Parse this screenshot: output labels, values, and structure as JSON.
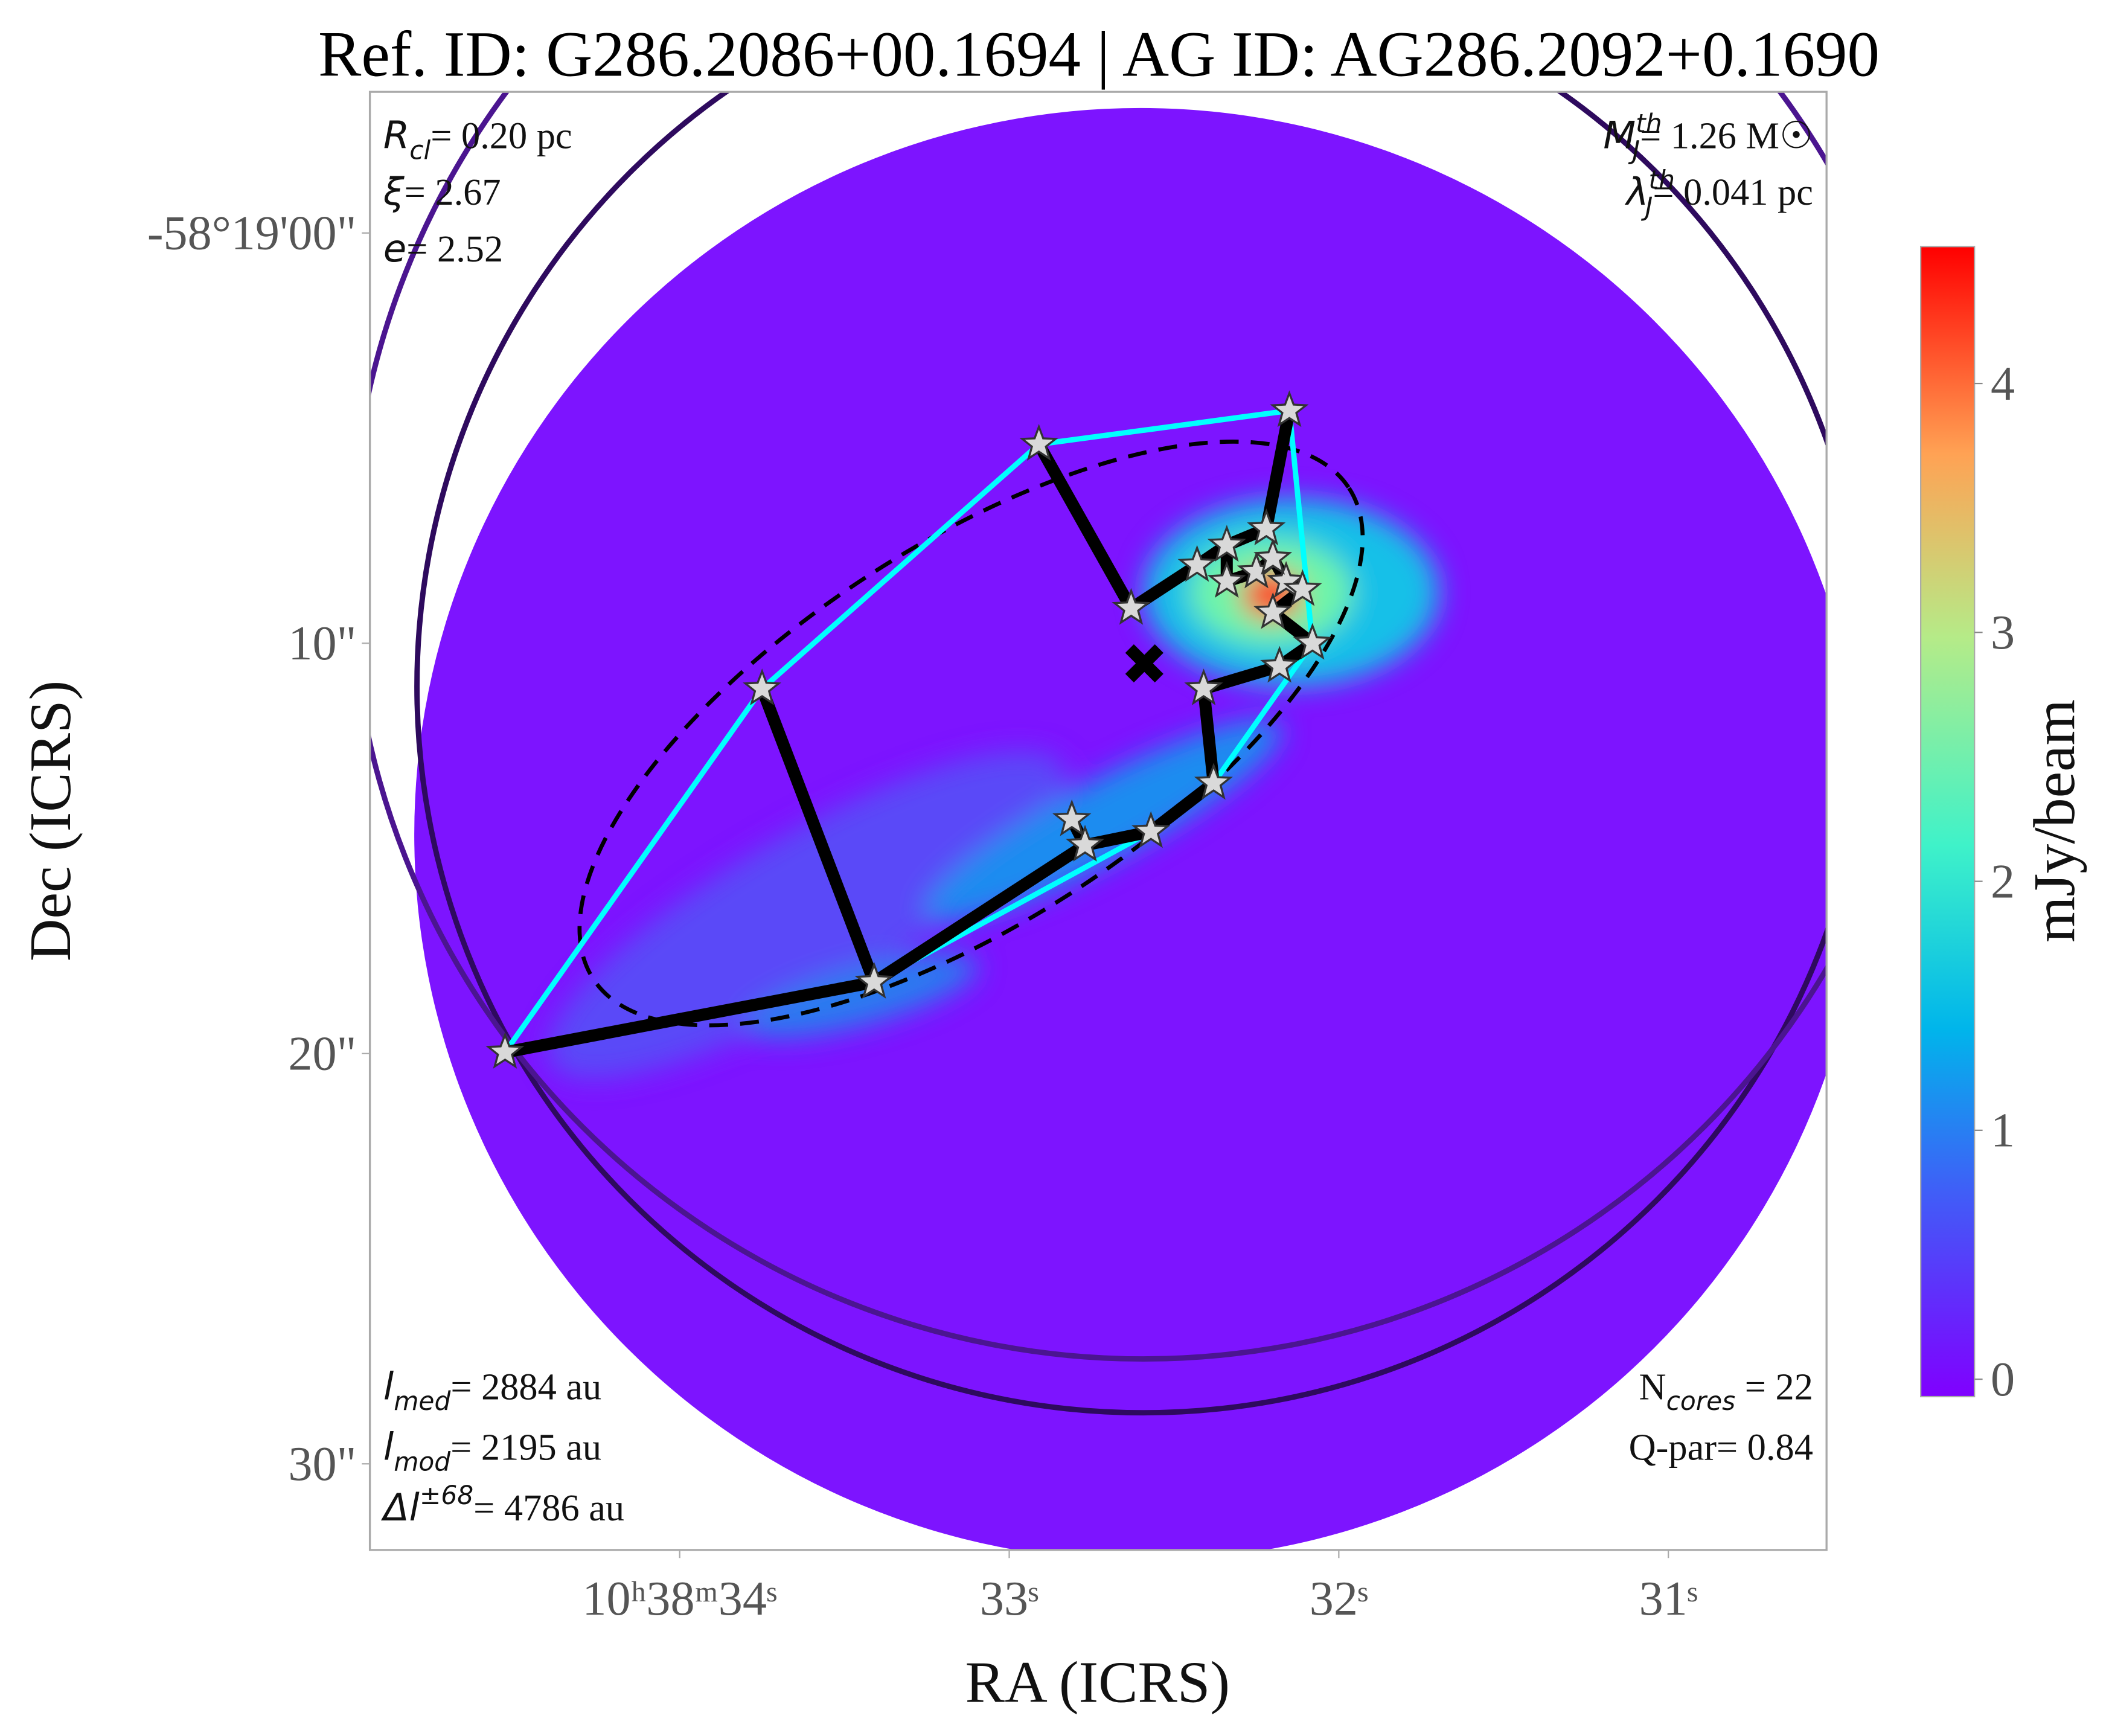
{
  "chart_data": {
    "type": "scatter",
    "title": "Ref. ID: G286.2086+00.1694 | AG ID: AG286.2092+0.1690",
    "x_label": "RA (ICRS)",
    "y_label": "Dec (ICRS)",
    "xlim": [
      34.94,
      30.52
    ],
    "ylim": [
      32.1,
      -3.44
    ],
    "xticks": [
      {
        "value": 34,
        "label": "10ʰ38ᵐ34ˢ"
      },
      {
        "value": 33,
        "label": "33ˢ"
      },
      {
        "value": 32,
        "label": "32ˢ"
      },
      {
        "value": 31,
        "label": "31ˢ"
      }
    ],
    "yticks": [
      {
        "value": 0,
        "label": "-58°19'00\""
      },
      {
        "value": 10,
        "label": "10\""
      },
      {
        "value": 20,
        "label": "20\""
      },
      {
        "value": 30,
        "label": "30\""
      }
    ],
    "x": [
      32.15,
      32.91,
      32.22,
      32.34,
      32.43,
      32.25,
      32.34,
      32.16,
      32.11,
      32.2,
      32.63,
      32.08,
      32.18,
      32.41,
      33.75,
      32.38,
      32.81,
      32.57,
      32.77,
      33.41,
      34.53,
      32.2
    ],
    "values": [
      4.33,
      5.15,
      7.21,
      7.61,
      8.1,
      8.26,
      8.49,
      8.49,
      8.69,
      9.25,
      9.15,
      10.0,
      10.56,
      11.11,
      11.11,
      13.41,
      14.3,
      14.59,
      14.92,
      18.26,
      19.97,
      7.93
    ],
    "color": "#d9d9d9",
    "hull": [
      20,
      14,
      1,
      0,
      11,
      15,
      17,
      19
    ],
    "hull_color": "#00ffff",
    "mst_edges": [
      [
        1,
        10
      ],
      [
        10,
        4
      ],
      [
        4,
        3
      ],
      [
        3,
        2
      ],
      [
        2,
        0
      ],
      [
        3,
        6
      ],
      [
        6,
        5
      ],
      [
        5,
        21
      ],
      [
        21,
        7
      ],
      [
        7,
        8
      ],
      [
        8,
        9
      ],
      [
        9,
        11
      ],
      [
        11,
        12
      ],
      [
        12,
        13
      ],
      [
        13,
        15
      ],
      [
        15,
        17
      ],
      [
        17,
        18
      ],
      [
        18,
        16
      ],
      [
        18,
        19
      ],
      [
        19,
        14
      ],
      [
        19,
        20
      ]
    ],
    "mst_color": "#000000",
    "centroid": {
      "x": 32.59,
      "y": 10.49
    },
    "colorbar": {
      "label": "mJy/beam",
      "clim": [
        -0.07,
        4.55
      ],
      "ticks": [
        0,
        1,
        2,
        3,
        4
      ]
    },
    "annotations": {
      "top_left": [
        {
          "symbol": "R",
          "sub": "cl",
          "text": "= 0.20 pc"
        },
        {
          "symbol": "ξ",
          "text": "= 2.67"
        },
        {
          "symbol": "e",
          "text": "= 2.52"
        }
      ],
      "top_right": [
        {
          "symbol": "M",
          "sub": "J",
          "sup": "th",
          "text": "= 1.26 M☉"
        },
        {
          "symbol": "λ",
          "sub": "J",
          "sup": "th",
          "text": "= 0.041 pc"
        }
      ],
      "bottom_left": [
        {
          "symbol": "l",
          "sub": "med",
          "text": "= 2884 au"
        },
        {
          "symbol": "l",
          "sub": "mod",
          "text": "= 2195 au"
        },
        {
          "symbol": "Δl",
          "sup": "±68",
          "text": "= 4786 au"
        }
      ],
      "bottom_right": [
        {
          "text": "N",
          "sub": "cores",
          "text2": " = 22"
        },
        {
          "text": "Q-par= 0.84"
        }
      ]
    }
  }
}
